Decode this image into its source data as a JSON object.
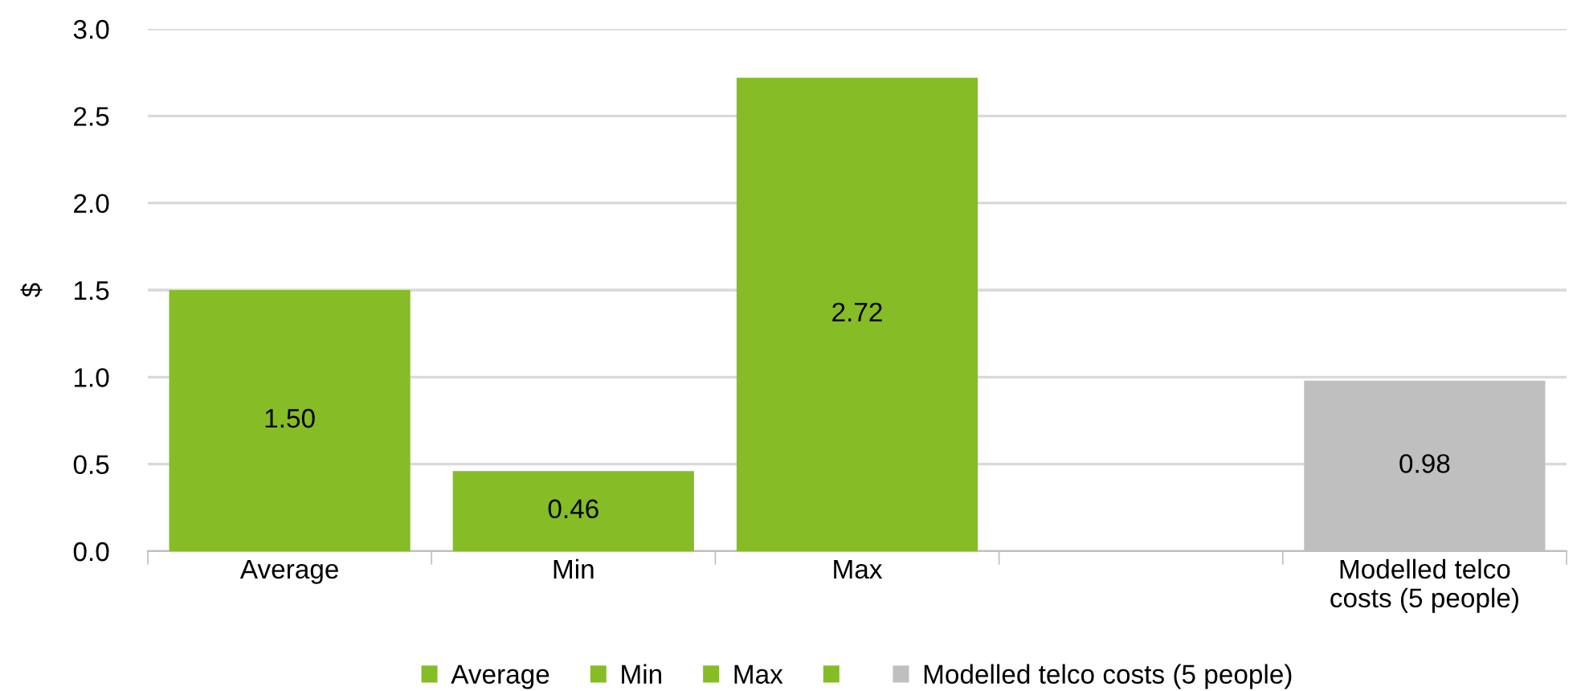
{
  "chart_data": {
    "type": "bar",
    "ylabel": "$",
    "categories": [
      "Average",
      "Min",
      "Max",
      null,
      "Modelled telco\ncosts (5 people)"
    ],
    "series": [
      {
        "name": "Average",
        "color": "#86bc25",
        "values": [
          1.5,
          null,
          null,
          null,
          null
        ],
        "value_labels": [
          "1.50",
          null,
          null,
          null,
          null
        ]
      },
      {
        "name": "Min",
        "color": "#86bc25",
        "values": [
          null,
          0.46,
          null,
          null,
          null
        ],
        "value_labels": [
          null,
          "0.46",
          null,
          null,
          null
        ]
      },
      {
        "name": "Max",
        "color": "#86bc25",
        "values": [
          null,
          null,
          2.72,
          null,
          null
        ],
        "value_labels": [
          null,
          null,
          "2.72",
          null,
          null
        ]
      },
      {
        "color": "#86bc25",
        "values": [
          null,
          null,
          null,
          null,
          null
        ]
      },
      {
        "name": "Modelled telco costs (5 people)",
        "color": "#bfbfbf",
        "values": [
          null,
          null,
          null,
          null,
          0.98
        ],
        "value_labels": [
          null,
          null,
          null,
          null,
          "0.98"
        ]
      }
    ],
    "ylim": [
      0,
      3.0
    ],
    "yticks": [
      {
        "value": 0,
        "label": "0.0"
      },
      {
        "value": 0.5,
        "label": "0.5"
      },
      {
        "value": 1.0,
        "label": "1.0"
      },
      {
        "value": 1.5,
        "label": "1.5"
      },
      {
        "value": 2.0,
        "label": "2.0"
      },
      {
        "value": 2.5,
        "label": "2.5"
      },
      {
        "value": 3.0,
        "label": "3.0"
      }
    ],
    "grid": "y",
    "legend": "bottom"
  }
}
